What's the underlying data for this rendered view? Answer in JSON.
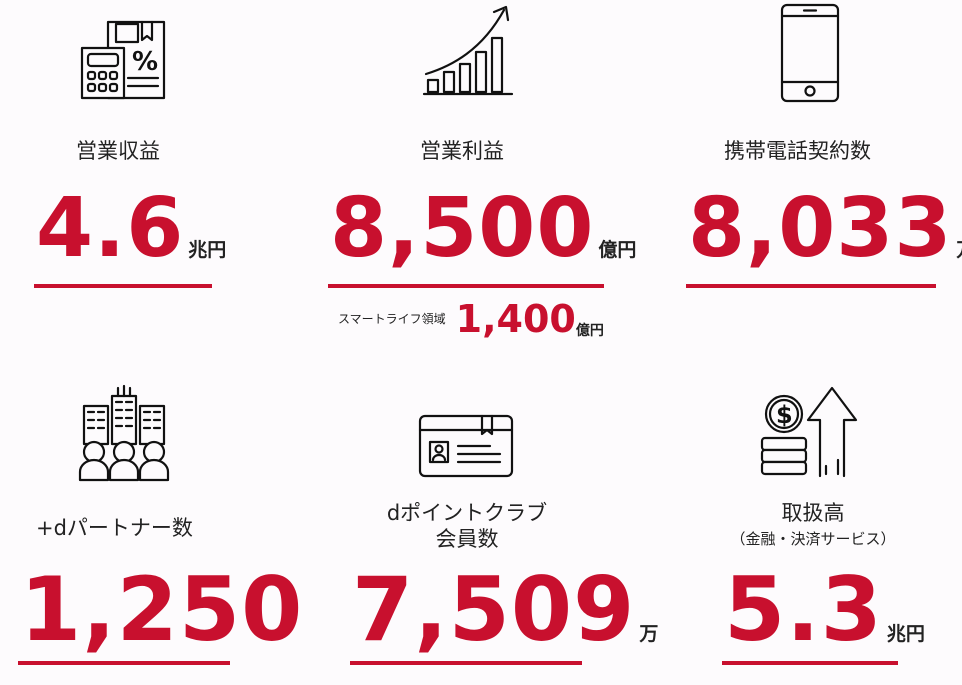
{
  "colors": {
    "accent": "#c8102e",
    "text": "#222222",
    "background": "#fdfbfd"
  },
  "stats": [
    {
      "label": "営業収益",
      "value": "4.6",
      "unit": "兆円",
      "icon": "calculator-document-icon"
    },
    {
      "label": "営業利益",
      "value": "8,500",
      "unit": "億円",
      "icon": "growth-chart-icon",
      "sub": {
        "label": "スマートライフ領域",
        "value": "1,400",
        "unit": "億円"
      }
    },
    {
      "label": "携帯電話契約数",
      "value": "8,033",
      "unit": "万",
      "icon": "smartphone-icon"
    },
    {
      "label": "+dパートナー数",
      "value": "1,250",
      "unit": "",
      "icon": "buildings-people-icon"
    },
    {
      "label_line1": "dポイントクラブ",
      "label_line2": "会員数",
      "value": "7,509",
      "unit": "万",
      "icon": "member-card-icon"
    },
    {
      "label": "取扱高",
      "sublabel": "（金融・決済サービス）",
      "value": "5.3",
      "unit": "兆円",
      "icon": "coins-arrow-icon"
    }
  ]
}
